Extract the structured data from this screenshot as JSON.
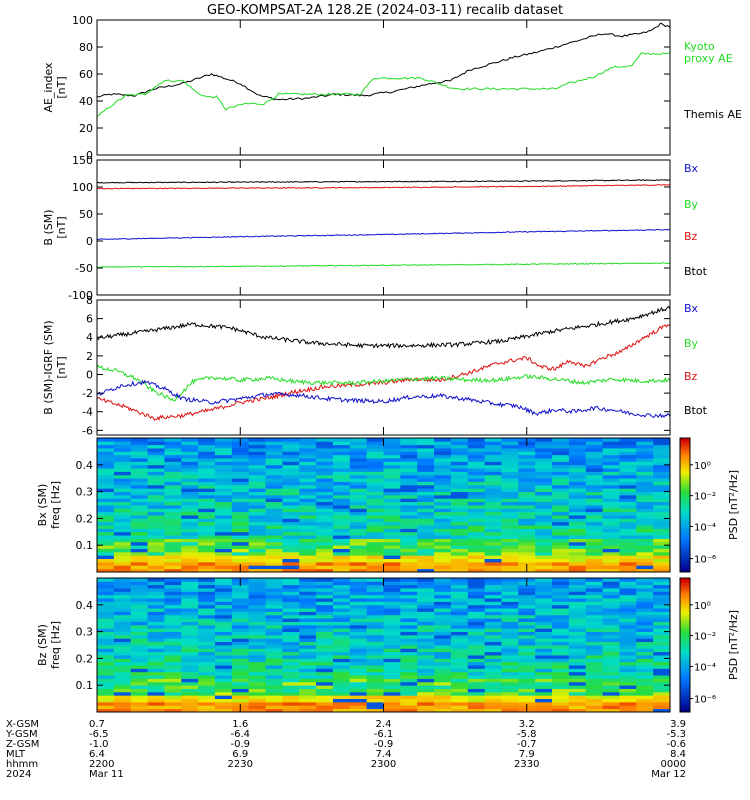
{
  "title": "GEO-KOMPSAT-2A 128.2E (2024-03-11) recalib dataset",
  "colors": {
    "black": "#000000",
    "green": "#22dd22",
    "red": "#dd1111",
    "blue": "#1111cc"
  },
  "time_ticks": [
    0,
    30,
    60,
    90,
    120
  ],
  "chart_data": [
    {
      "type": "line",
      "ylabel": "AE_index [nT]",
      "ylim": [
        0,
        100
      ],
      "yticks": [
        "0",
        "20",
        "40",
        "60",
        "80",
        "100"
      ],
      "legend": [
        {
          "text": "Kyoto proxy AE",
          "lines": [
            "Kyoto",
            "proxy AE"
          ],
          "color": "#22dd22"
        },
        {
          "text": "Themis AE",
          "lines": [
            "Themis AE"
          ],
          "color": "#000000"
        }
      ],
      "series": [
        {
          "name": "Themis AE",
          "color": "#000000",
          "x": [
            0,
            3,
            8,
            12,
            18,
            24,
            30,
            34,
            38,
            44,
            50,
            56,
            62,
            66,
            70,
            74,
            78,
            84,
            88,
            92,
            98,
            102,
            106,
            110,
            114,
            116,
            118,
            120
          ],
          "y": [
            43,
            45,
            44,
            49,
            53,
            60,
            53,
            44,
            41,
            42,
            45,
            44,
            47,
            50,
            53,
            55,
            63,
            69,
            73,
            76,
            82,
            86,
            90,
            88,
            90,
            92,
            97,
            95
          ]
        },
        {
          "name": "Kyoto proxy AE",
          "color": "#22dd22",
          "x": [
            0,
            2,
            6,
            10,
            14,
            18,
            21,
            23,
            25,
            27,
            31,
            35,
            38,
            44,
            50,
            55,
            58,
            62,
            68,
            74,
            76,
            80,
            88,
            93,
            96,
            98,
            100,
            104,
            108,
            112,
            114,
            120
          ],
          "y": [
            28,
            34,
            44,
            45,
            55,
            55,
            46,
            43,
            43,
            34,
            38,
            38,
            45,
            45,
            45,
            45,
            57,
            57,
            57,
            50,
            49,
            49,
            49,
            49,
            49,
            52,
            54,
            58,
            65,
            66,
            75,
            75
          ]
        }
      ]
    },
    {
      "type": "line",
      "ylabel": "B (SM) [nT]",
      "ylim": [
        -100,
        150
      ],
      "yticks": [
        "-100",
        "-50",
        "0",
        "50",
        "100",
        "150"
      ],
      "legend": [
        {
          "text": "Bx",
          "lines": [
            "Bx"
          ],
          "color": "#1111cc"
        },
        {
          "text": "By",
          "lines": [
            "By"
          ],
          "color": "#22dd22"
        },
        {
          "text": "Bz",
          "lines": [
            "Bz"
          ],
          "color": "#dd1111"
        },
        {
          "text": "Btot",
          "lines": [
            "Btot"
          ],
          "color": "#000000"
        }
      ],
      "series": [
        {
          "name": "Btot",
          "color": "#000000",
          "x": [
            0,
            30,
            60,
            90,
            120
          ],
          "y": [
            108,
            109,
            110,
            111,
            113
          ]
        },
        {
          "name": "Bz",
          "color": "#dd1111",
          "x": [
            0,
            30,
            60,
            90,
            120
          ],
          "y": [
            97,
            98,
            99,
            101,
            104
          ]
        },
        {
          "name": "Bx",
          "color": "#1111cc",
          "x": [
            0,
            30,
            60,
            90,
            120
          ],
          "y": [
            3,
            8,
            12,
            17,
            21
          ]
        },
        {
          "name": "By",
          "color": "#22dd22",
          "x": [
            0,
            30,
            60,
            90,
            120
          ],
          "y": [
            -48,
            -47,
            -45,
            -43,
            -41
          ]
        }
      ]
    },
    {
      "type": "line",
      "ylabel": "B (SM)-IGRF (SM) [nT]",
      "ylim": [
        -6.5,
        8
      ],
      "yticks": [
        "-6",
        "-4",
        "-2",
        "0",
        "2",
        "4",
        "6",
        "8"
      ],
      "legend": [
        {
          "text": "Bx",
          "lines": [
            "Bx"
          ],
          "color": "#1111cc"
        },
        {
          "text": "By",
          "lines": [
            "By"
          ],
          "color": "#22dd22"
        },
        {
          "text": "Bz",
          "lines": [
            "Bz"
          ],
          "color": "#dd1111"
        },
        {
          "text": "Btot",
          "lines": [
            "Btot"
          ],
          "color": "#000000"
        }
      ],
      "series": [
        {
          "name": "Btot",
          "color": "#000000",
          "x": [
            0,
            10,
            20,
            28,
            35,
            45,
            55,
            65,
            75,
            85,
            95,
            105,
            112,
            120
          ],
          "y": [
            3.9,
            4.6,
            5.4,
            5.0,
            4.0,
            3.4,
            3.1,
            3.1,
            3.2,
            3.6,
            4.6,
            5.4,
            6.0,
            7.2
          ]
        },
        {
          "name": "Bz",
          "color": "#dd1111",
          "x": [
            0,
            6,
            12,
            18,
            24,
            30,
            36,
            42,
            48,
            54,
            60,
            66,
            72,
            78,
            84,
            90,
            93,
            96,
            99,
            102,
            106,
            110,
            114,
            120
          ],
          "y": [
            -2.6,
            -3.5,
            -4.7,
            -4.4,
            -3.8,
            -3.0,
            -2.5,
            -1.8,
            -1.3,
            -1.1,
            -0.9,
            -0.5,
            -0.6,
            0.2,
            1.2,
            1.8,
            0.8,
            0.6,
            1.5,
            0.8,
            1.8,
            2.5,
            3.8,
            5.5
          ]
        },
        {
          "name": "By",
          "color": "#22dd22",
          "x": [
            0,
            4,
            8,
            12,
            16,
            20,
            24,
            30,
            36,
            42,
            48,
            54,
            60,
            66,
            72,
            78,
            84,
            90,
            96,
            102,
            108,
            114,
            120
          ],
          "y": [
            0.8,
            0.4,
            -0.4,
            -1.8,
            -2.8,
            -0.8,
            -0.3,
            -0.6,
            -0.4,
            -0.8,
            -0.9,
            -0.9,
            -0.7,
            -0.5,
            -0.4,
            -0.6,
            -0.6,
            -0.2,
            -0.5,
            -0.9,
            -0.5,
            -0.7,
            -0.6
          ]
        },
        {
          "name": "Bx",
          "color": "#1111cc",
          "x": [
            0,
            5,
            10,
            14,
            18,
            24,
            30,
            36,
            42,
            48,
            54,
            60,
            66,
            72,
            78,
            84,
            88,
            92,
            96,
            100,
            104,
            108,
            112,
            116,
            120
          ],
          "y": [
            -2.2,
            -1.2,
            -0.8,
            -1.5,
            -2.6,
            -3.0,
            -2.6,
            -2.1,
            -2.2,
            -2.6,
            -2.8,
            -2.9,
            -2.4,
            -2.3,
            -2.7,
            -3.2,
            -3.4,
            -4.2,
            -3.8,
            -4.0,
            -3.6,
            -3.8,
            -4.2,
            -4.4,
            -4.4
          ]
        }
      ]
    },
    {
      "type": "heatmap",
      "ylabel_lines": [
        "Bx (SM)",
        "freq [Hz]"
      ],
      "ylim": [
        0,
        0.5
      ],
      "yticks": [
        "0.1",
        "0.2",
        "0.3",
        "0.4"
      ],
      "colorbar_label": "PSD [nT²/Hz]",
      "colorbar_ticks": [
        "10⁰",
        "10⁻²",
        "10⁻⁴",
        "10⁻⁶"
      ]
    },
    {
      "type": "heatmap",
      "ylabel_lines": [
        "Bz (SM)",
        "freq [Hz]"
      ],
      "ylim": [
        0,
        0.5
      ],
      "yticks": [
        "0.1",
        "0.2",
        "0.3",
        "0.4"
      ],
      "colorbar_label": "PSD [nT²/Hz]",
      "colorbar_ticks": [
        "10⁰",
        "10⁻²",
        "10⁻⁴",
        "10⁻⁶"
      ]
    }
  ],
  "ephemeris": {
    "row_labels": [
      "X-GSM",
      "Y-GSM",
      "Z-GSM",
      "MLT",
      "hhmm",
      "2024"
    ],
    "columns": [
      [
        "0.7",
        "-6.5",
        "-1.0",
        "6.4",
        "2200",
        "Mar 11"
      ],
      [
        "1.6",
        "-6.4",
        "-0.9",
        "6.9",
        "2230",
        ""
      ],
      [
        "2.4",
        "-6.1",
        "-0.9",
        "7.4",
        "2300",
        ""
      ],
      [
        "3.2",
        "-5.8",
        "-0.7",
        "7.9",
        "2330",
        ""
      ],
      [
        "3.9",
        "-5.3",
        "-0.6",
        "8.4",
        "0000",
        "Mar 12"
      ]
    ]
  }
}
